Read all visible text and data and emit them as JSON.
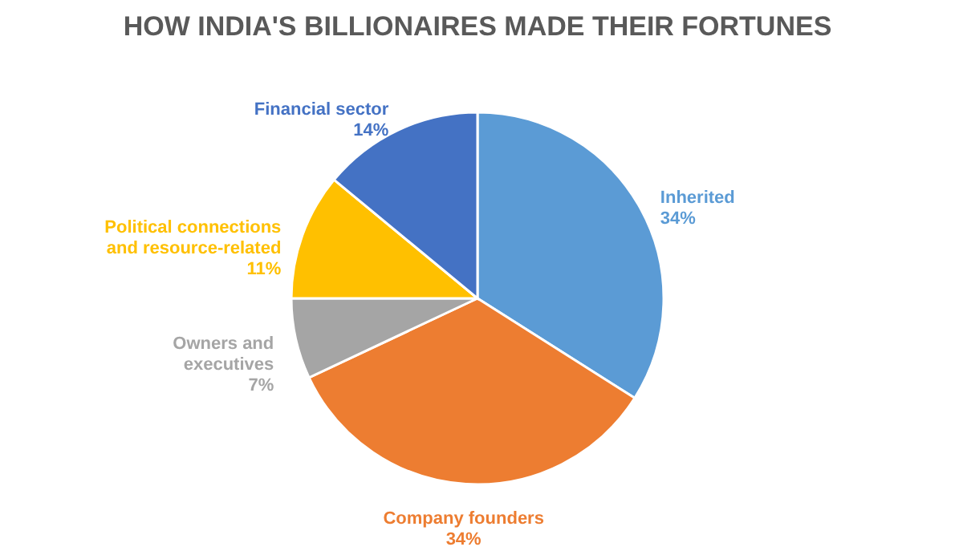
{
  "chart_data": {
    "type": "pie",
    "title": "HOW INDIA'S BILLIONAIRES MADE THEIR FORTUNES",
    "categories": [
      "Inherited",
      "Company founders",
      "Owners and executives",
      "Political connections and resource-related",
      "Financial sector"
    ],
    "values": [
      34,
      34,
      7,
      11,
      14
    ],
    "value_labels": [
      "34%",
      "34%",
      "7%",
      "11%",
      "14%"
    ],
    "colors": [
      "#5b9bd5",
      "#ed7d31",
      "#a5a5a5",
      "#ffc000",
      "#4472c4"
    ],
    "legend": false
  }
}
